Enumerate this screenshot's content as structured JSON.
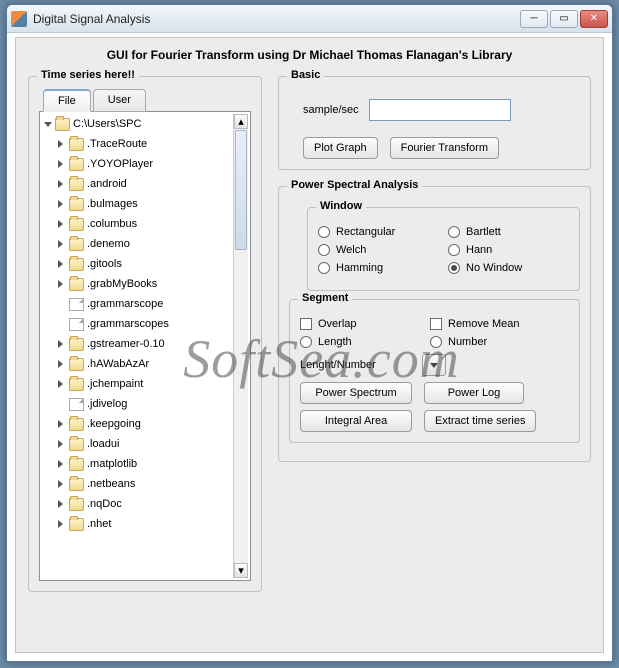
{
  "window": {
    "title": "Digital Signal Analysis"
  },
  "header": "GUI for Fourier Transform  using Dr Michael Thomas Flanagan's Library",
  "watermark": "SoftSea.com",
  "left": {
    "title": "Time series here!!",
    "tabs": {
      "file": "File",
      "user": "User",
      "active": "file"
    },
    "root": "C:\\Users\\SPC",
    "items": [
      {
        "type": "folder",
        "name": ".TraceRoute"
      },
      {
        "type": "folder",
        "name": ".YOYOPlayer"
      },
      {
        "type": "folder",
        "name": ".android"
      },
      {
        "type": "folder",
        "name": ".bulmages"
      },
      {
        "type": "folder",
        "name": ".columbus"
      },
      {
        "type": "folder",
        "name": ".denemo"
      },
      {
        "type": "folder",
        "name": ".gitools"
      },
      {
        "type": "folder",
        "name": ".grabMyBooks"
      },
      {
        "type": "file",
        "name": ".grammarscope"
      },
      {
        "type": "file",
        "name": ".grammarscopes"
      },
      {
        "type": "folder",
        "name": ".gstreamer-0.10"
      },
      {
        "type": "folder",
        "name": ".hAWabAzAr"
      },
      {
        "type": "folder",
        "name": ".jchempaint"
      },
      {
        "type": "file",
        "name": ".jdivelog"
      },
      {
        "type": "folder",
        "name": ".keepgoing"
      },
      {
        "type": "folder",
        "name": ".loadui"
      },
      {
        "type": "folder",
        "name": ".matplotlib"
      },
      {
        "type": "folder",
        "name": ".netbeans"
      },
      {
        "type": "folder",
        "name": ".nqDoc"
      },
      {
        "type": "folder",
        "name": ".nhet"
      }
    ]
  },
  "basic": {
    "title": "Basic",
    "sample_label": "sample/sec",
    "sample_value": "",
    "plot_btn": "Plot Graph",
    "fourier_btn": "Fourier Transform"
  },
  "psa": {
    "title": "Power Spectral Analysis",
    "window": {
      "title": "Window",
      "options": [
        "Rectangular",
        "Bartlett",
        "Welch",
        "Hann",
        "Hamming",
        "No Window"
      ],
      "selected": "No Window"
    },
    "segment": {
      "title": "Segment",
      "overlap": "Overlap",
      "remove_mean": "Remove Mean",
      "length_radio": "Length",
      "number_radio": "Number",
      "length_number_label": "Lenght/Number",
      "power_spectrum": "Power Spectrum",
      "power_log": "Power Log",
      "integral_area": "Integral Area",
      "extract": "Extract time series"
    }
  }
}
